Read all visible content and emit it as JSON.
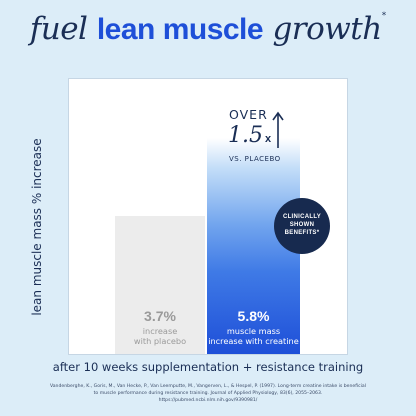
{
  "headline": {
    "part1": "fuel ",
    "part2": "lean muscle",
    "part3": " growth",
    "asterisk": "*"
  },
  "chart_data": {
    "type": "bar",
    "categories": [
      "placebo",
      "creatine"
    ],
    "values": [
      3.7,
      5.8
    ],
    "ylabel": "lean muscle mass % increase",
    "xlabel": "after 10 weeks supplementation + resistance training",
    "ylim": [
      0,
      7.4
    ],
    "grid": false,
    "bars": [
      {
        "value_label": "3.7%",
        "description": "increase\nwith placebo",
        "color": "#ececec",
        "text_color": "#9a9a9a"
      },
      {
        "value_label": "5.8%",
        "description": "muscle mass\nincrease with creatine",
        "color": "#1e4fd8",
        "text_color": "#ffffff"
      }
    ],
    "annotations": {
      "over": "OVER",
      "multiplier": "1.5",
      "multiplier_suffix": "x",
      "vs": "VS. PLACEBO",
      "arrow_icon": "arrow-up-icon"
    }
  },
  "badge": {
    "line1": "CLINICALLY",
    "line2": "SHOWN",
    "line3": "BENEFITS*"
  },
  "citation": "Vandenberghe, K., Goris, M., Van Hecke, P., Van Leemputte, M., Vangerven, L., & Hespel, P. (1997). Long-term creatine intake is beneficial to muscle performance during resistance training. Journal of Applied Physiology, 83(6), 2055–2063. https://pubmed.ncbi.nlm.nih.gov/9390981/",
  "colors": {
    "background": "#dcedf8",
    "navy": "#1a2e55",
    "accent_blue": "#1e4fd8",
    "placebo_gray": "#ececec"
  }
}
